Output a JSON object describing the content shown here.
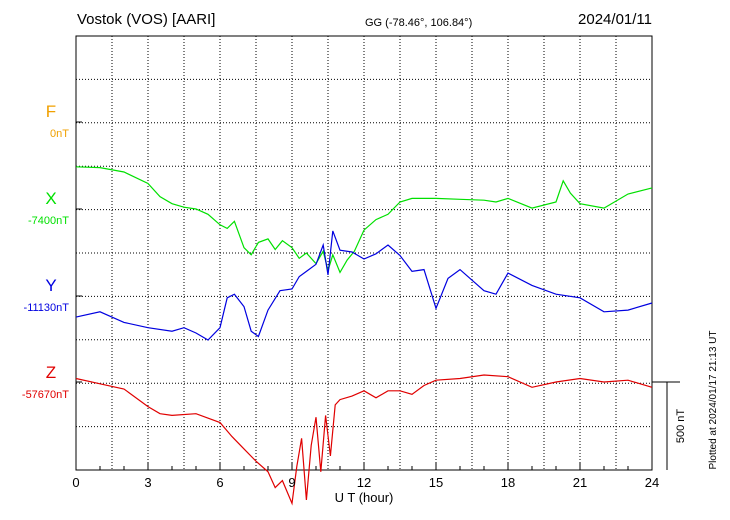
{
  "header": {
    "station": "Vostok (VOS)  [AARI]",
    "coords": "GG (-78.46°, 106.84°)",
    "date": "2024/01/11"
  },
  "footer": {
    "plotted_note": "Plotted at 2024/01/17 21:13 UT"
  },
  "scale_bar": {
    "label": "500 nT",
    "value_nT": 500
  },
  "colors": {
    "F": "#f0a000",
    "X": "#00e000",
    "Y": "#0000e0",
    "Z": "#e00000",
    "grid": "#000000"
  },
  "chart_data": {
    "type": "line",
    "title": "Vostok (VOS)  [AARI]",
    "xlabel": "U T (hour)",
    "xlim": [
      0,
      24
    ],
    "xticks": [
      "0",
      "3",
      "6",
      "9",
      "12",
      "15",
      "18",
      "21",
      "24"
    ],
    "grid": true,
    "series": [
      {
        "name": "F",
        "baseline_label": "0nT",
        "x": [],
        "values": []
      },
      {
        "name": "X",
        "baseline_label": "-7400nT",
        "x": [
          0,
          1,
          2,
          3,
          3.5,
          4,
          4.5,
          5,
          5.5,
          6,
          6.3,
          6.6,
          7,
          7.3,
          7.6,
          8,
          8.3,
          8.6,
          9,
          9.3,
          9.6,
          10,
          10.3,
          10.5,
          10.7,
          11,
          11.3,
          11.6,
          12,
          12.5,
          13,
          13.5,
          14,
          15,
          16,
          17,
          17.5,
          18,
          19,
          20,
          20.3,
          20.6,
          21,
          22,
          23,
          24
        ],
        "values": [
          240,
          235,
          210,
          145,
          70,
          30,
          10,
          0,
          -30,
          -90,
          -110,
          -70,
          -220,
          -260,
          -190,
          -170,
          -230,
          -180,
          -220,
          -280,
          -250,
          -310,
          -240,
          -350,
          -260,
          -360,
          -290,
          -240,
          -120,
          -60,
          -30,
          40,
          60,
          60,
          55,
          50,
          40,
          60,
          5,
          40,
          160,
          90,
          30,
          5,
          85,
          120
        ]
      },
      {
        "name": "Y",
        "baseline_label": "-11130nT",
        "x": [
          0,
          1,
          2,
          3,
          4,
          4.5,
          5,
          5.5,
          6,
          6.3,
          6.6,
          7,
          7.3,
          7.6,
          8,
          8.5,
          9,
          9.3,
          9.6,
          10,
          10.3,
          10.5,
          10.7,
          11,
          11.5,
          12,
          12.5,
          13,
          13.5,
          14,
          14.5,
          15,
          15.5,
          16,
          17,
          17.5,
          18,
          19,
          20,
          21,
          22,
          23,
          24
        ],
        "values": [
          -120,
          -90,
          -150,
          -180,
          -200,
          -180,
          -210,
          -250,
          -180,
          -10,
          10,
          -60,
          -200,
          -230,
          -80,
          30,
          40,
          110,
          140,
          180,
          290,
          120,
          370,
          260,
          250,
          210,
          240,
          290,
          230,
          140,
          150,
          -70,
          100,
          150,
          30,
          10,
          130,
          60,
          10,
          -10,
          -90,
          -80,
          -40
        ]
      },
      {
        "name": "Z",
        "baseline_label": "-57670nT",
        "x": [
          0,
          1,
          2,
          3,
          3.5,
          4,
          5,
          6,
          6.5,
          7,
          7.5,
          8,
          8.3,
          8.6,
          9,
          9.2,
          9.4,
          9.6,
          9.8,
          10,
          10.2,
          10.4,
          10.6,
          10.8,
          11,
          11.5,
          12,
          12.5,
          13,
          13.5,
          14,
          14.5,
          15,
          16,
          17,
          18,
          19,
          20,
          21,
          22,
          23,
          24
        ],
        "values": [
          20,
          -10,
          -40,
          -140,
          -180,
          -190,
          -180,
          -230,
          -310,
          -380,
          -450,
          -510,
          -600,
          -560,
          -690,
          -480,
          -320,
          -670,
          -360,
          -200,
          -510,
          -190,
          -420,
          -130,
          -100,
          -80,
          -50,
          -90,
          -50,
          -50,
          -70,
          -20,
          10,
          20,
          40,
          30,
          -30,
          0,
          20,
          0,
          10,
          -30
        ]
      }
    ]
  }
}
